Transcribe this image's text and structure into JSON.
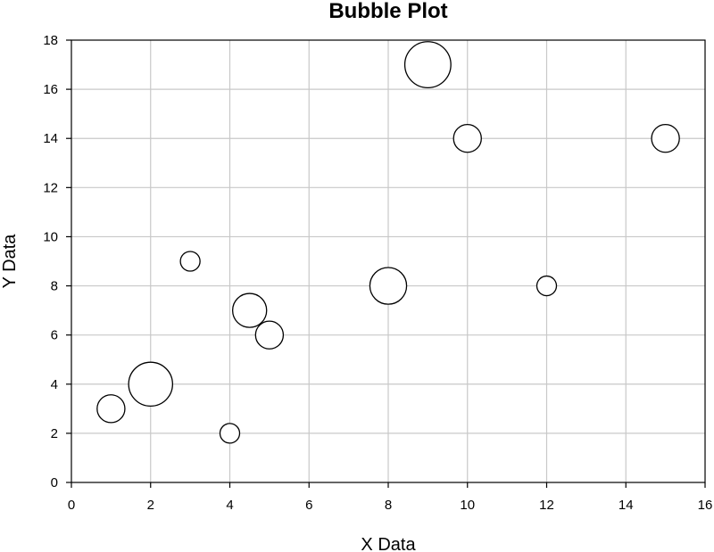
{
  "chart_data": {
    "type": "scatter",
    "title": "Bubble Plot",
    "xlabel": "X Data",
    "ylabel": "Y Data",
    "xlim": [
      0,
      16
    ],
    "ylim": [
      0,
      18
    ],
    "xticks": [
      0,
      2,
      4,
      6,
      8,
      10,
      12,
      14,
      16
    ],
    "yticks": [
      0,
      2,
      4,
      6,
      8,
      10,
      12,
      14,
      16,
      18
    ],
    "grid": true,
    "legend": false,
    "colors": {
      "bubble_fill": "#ffffff",
      "bubble_stroke": "#000000",
      "grid": "#c8c8c8",
      "axis": "#000000"
    },
    "points": [
      {
        "x": 1,
        "y": 3,
        "size": 2
      },
      {
        "x": 2,
        "y": 4,
        "size": 5
      },
      {
        "x": 3,
        "y": 9,
        "size": 1
      },
      {
        "x": 4,
        "y": 2,
        "size": 1
      },
      {
        "x": 4.5,
        "y": 7,
        "size": 3
      },
      {
        "x": 5,
        "y": 6,
        "size": 2
      },
      {
        "x": 8,
        "y": 8,
        "size": 3.5
      },
      {
        "x": 9,
        "y": 17,
        "size": 5.5
      },
      {
        "x": 10,
        "y": 14,
        "size": 2
      },
      {
        "x": 12,
        "y": 8,
        "size": 1
      },
      {
        "x": 15,
        "y": 14,
        "size": 2
      }
    ]
  }
}
